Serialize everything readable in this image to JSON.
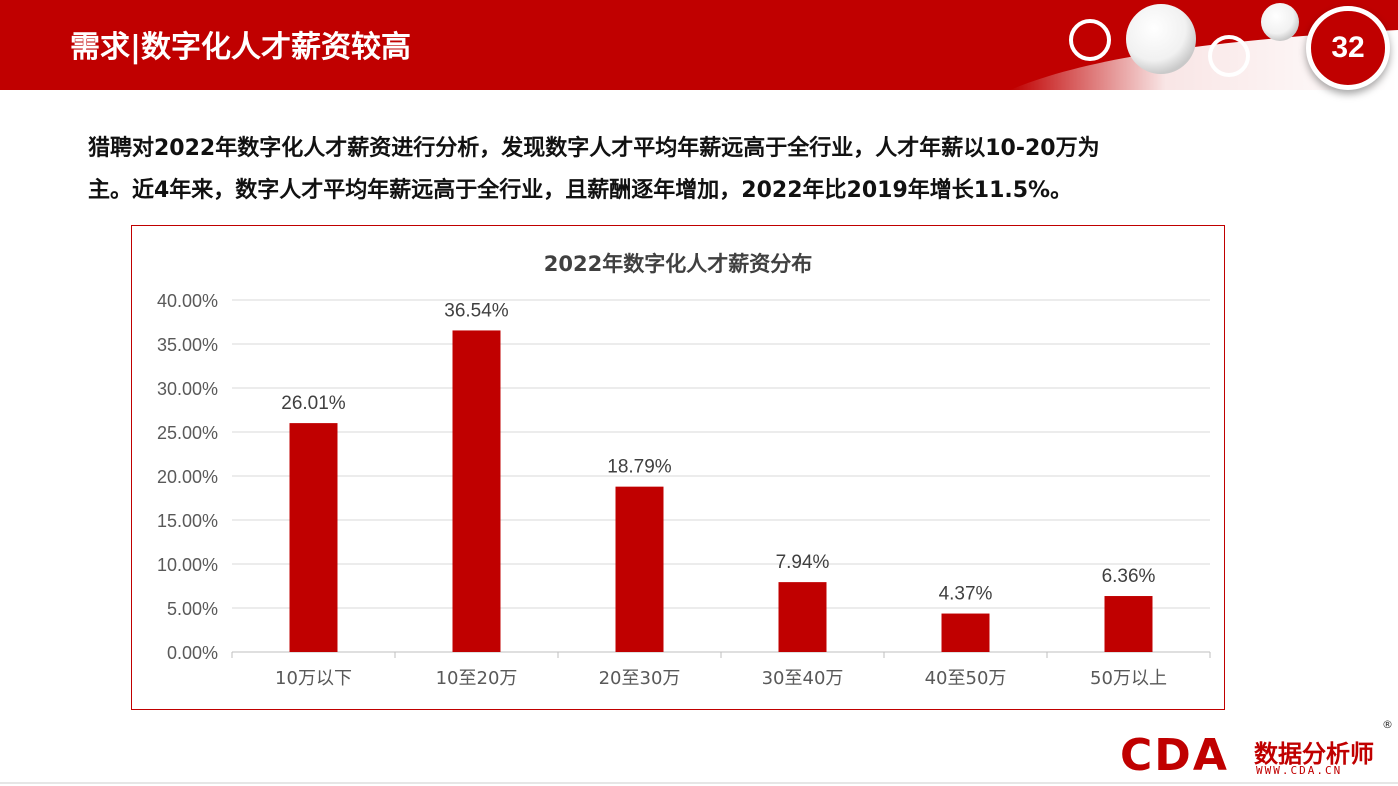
{
  "header": {
    "title": "需求|数字化人才薪资较高",
    "page_number": "32"
  },
  "intro": {
    "line1": "猎聘对2022年数字化人才薪资进行分析，发现数字人才平均年薪远高于全行业，人才年薪以10-20万为",
    "line2": "主。近4年来，数字人才平均年薪远高于全行业，且薪酬逐年增加，2022年比2019年增长11.5%。"
  },
  "chart_data": {
    "type": "bar",
    "title": "2022年数字化人才薪资分布",
    "categories": [
      "10万以下",
      "10至20万",
      "20至30万",
      "30至40万",
      "40至50万",
      "50万以上"
    ],
    "values": [
      26.01,
      36.54,
      18.79,
      7.94,
      4.37,
      6.36
    ],
    "value_labels": [
      "26.01%",
      "36.54%",
      "18.79%",
      "7.94%",
      "4.37%",
      "6.36%"
    ],
    "y_ticks": [
      "0.00%",
      "5.00%",
      "10.00%",
      "15.00%",
      "20.00%",
      "25.00%",
      "30.00%",
      "35.00%",
      "40.00%"
    ],
    "ylim": [
      0,
      40
    ],
    "xlabel": "",
    "ylabel": "",
    "grid": true,
    "bar_color": "#c00000"
  },
  "logo": {
    "brand": "CDA",
    "name": "数据分析师",
    "url": "WWW.CDA.CN",
    "reg": "®"
  },
  "colors": {
    "accent": "#c00000"
  }
}
